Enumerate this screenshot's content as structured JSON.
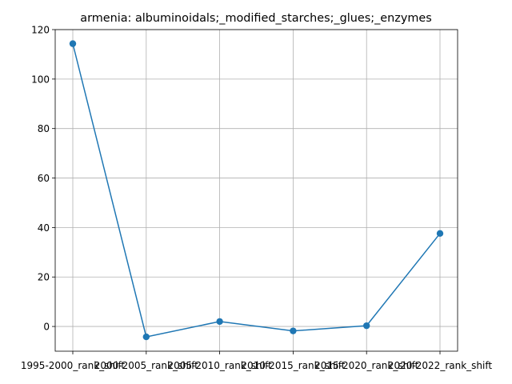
{
  "chart_data": {
    "type": "line",
    "title": "armenia: albuminoidals;_modified_starches;_glues;_enzymes",
    "xlabel": "",
    "ylabel": "",
    "categories": [
      "1995-2000_rank_shift",
      "2000-2005_rank_shift",
      "2005-2010_rank_shift",
      "2010-2015_rank_shift",
      "2015-2020_rank_shift",
      "2020-2022_rank_shift"
    ],
    "series": [
      {
        "values": [
          114.3,
          -4.2,
          2.0,
          -1.8,
          0.3,
          37.6
        ]
      }
    ],
    "ylim": [
      -10.0,
      120.0
    ],
    "yticks": [
      0,
      20,
      40,
      60,
      80,
      100,
      120
    ],
    "grid": true,
    "colors": {
      "line": "#1f77b4",
      "marker": "#1f77b4"
    }
  }
}
